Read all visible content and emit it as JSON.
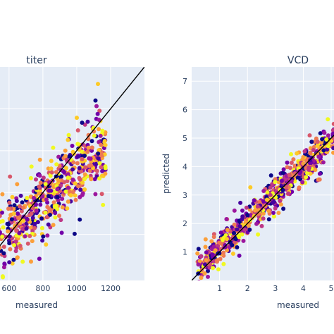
{
  "chart_data": [
    {
      "type": "scatter",
      "title": "titer",
      "xlabel": "measured",
      "ylabel": "",
      "xlim": [
        380,
        1400
      ],
      "ylim": [
        380,
        1400
      ],
      "xticks": [
        600,
        800,
        1000,
        1200
      ],
      "yticks": [],
      "grid": true,
      "identity_line": true,
      "trend": {
        "x_range": [
          420,
          1170
        ],
        "slope": 0.72,
        "intercept": 180,
        "noise_sd": 90
      },
      "point_count": 650,
      "seed": 11
    },
    {
      "type": "scatter",
      "title": "VCD",
      "xlabel": "measured",
      "ylabel": "predicted",
      "xlim": [
        0,
        5.1
      ],
      "ylim": [
        0,
        7.5
      ],
      "xticks": [
        1,
        2,
        3,
        4,
        5
      ],
      "yticks": [
        1,
        2,
        3,
        4,
        5,
        6,
        7
      ],
      "grid": true,
      "identity_line": true,
      "trend": {
        "x_range": [
          0.2,
          5.1
        ],
        "slope": 0.93,
        "intercept": 0.25,
        "noise_sd": 0.3
      },
      "point_count": 700,
      "seed": 23
    }
  ],
  "colors": {
    "plot_bg": "#e5ecf6",
    "grid": "#ffffff",
    "line": "#000000",
    "palette": [
      "#0d0887",
      "#46039f",
      "#7201a8",
      "#9c179e",
      "#bd3786",
      "#d8576b",
      "#ed7953",
      "#fb9f3a",
      "#fdca26",
      "#f0f921"
    ]
  }
}
